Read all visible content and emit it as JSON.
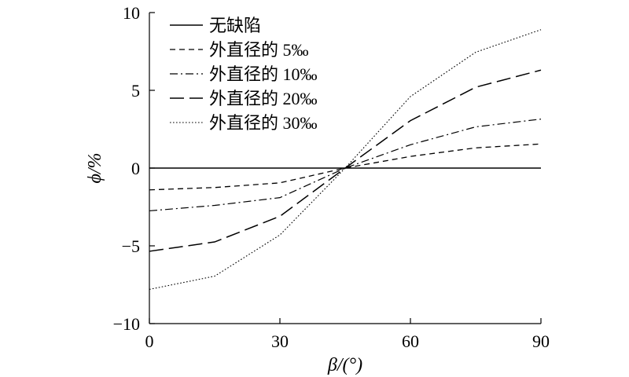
{
  "chart_data": {
    "type": "line",
    "xlabel": "β/(°)",
    "ylabel": "ϕ/%",
    "xlim": [
      0,
      90
    ],
    "ylim": [
      -10,
      10
    ],
    "x_ticks": [
      0,
      30,
      60,
      90
    ],
    "y_ticks": [
      -10,
      -5,
      0,
      5,
      10
    ],
    "y_tick_labels": [
      "−10",
      "−5",
      "0",
      "5",
      "10"
    ],
    "grid": false,
    "legend_position": "top-left",
    "x": [
      0,
      15,
      30,
      45,
      60,
      75,
      90
    ],
    "series": [
      {
        "name": "无缺陷",
        "style": "solid",
        "values": [
          0,
          0,
          0,
          0,
          0,
          0,
          0
        ]
      },
      {
        "name": "外直径的 5‰",
        "style": "short-dash",
        "values": [
          -1.4,
          -1.25,
          -0.95,
          0,
          0.75,
          1.3,
          1.55
        ]
      },
      {
        "name": "外直径的 10‰",
        "style": "dash-dot",
        "values": [
          -2.75,
          -2.4,
          -1.9,
          0,
          1.5,
          2.65,
          3.15
        ]
      },
      {
        "name": "外直径的 20‰",
        "style": "long-dash",
        "values": [
          -5.35,
          -4.75,
          -3.1,
          0,
          3.05,
          5.2,
          6.3
        ]
      },
      {
        "name": "外直径的 30‰",
        "style": "dotted",
        "values": [
          -7.8,
          -6.95,
          -4.3,
          0,
          4.6,
          7.45,
          8.9
        ]
      }
    ]
  }
}
